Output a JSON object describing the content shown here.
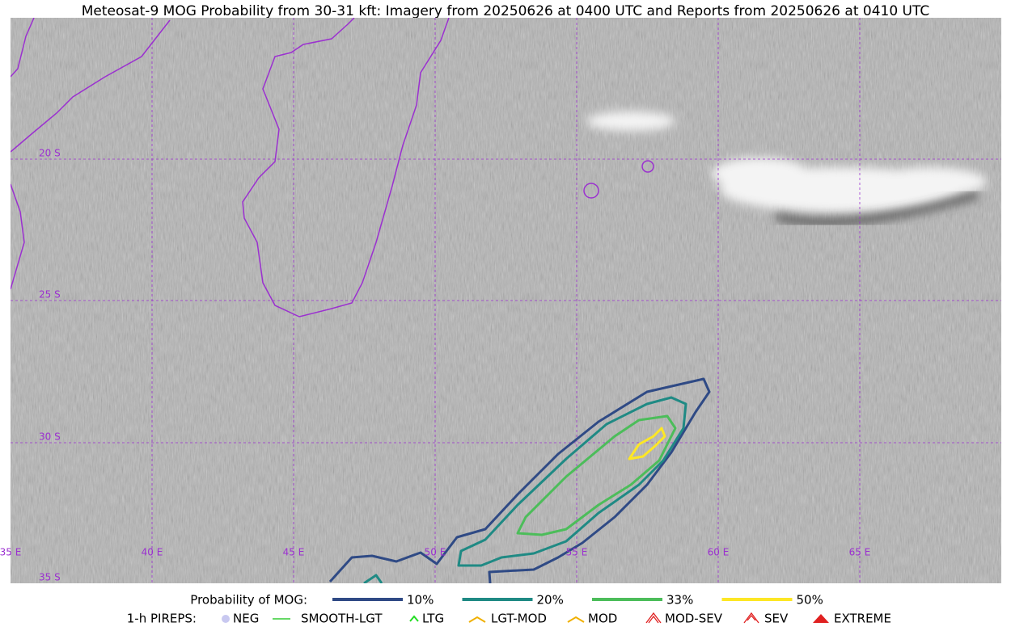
{
  "title": "Meteosat-9 MOG Probability from 30-31 kft: Imagery from 20250626 at 0400 UTC and Reports from 20250626 at 0410 UTC",
  "lat_labels": [
    "20 S",
    "25 S",
    "30 S",
    "35 S"
  ],
  "lon_labels": [
    "35 E",
    "40 E",
    "45 E",
    "50 E",
    "55 E",
    "60 E",
    "65 E"
  ],
  "probability_legend": {
    "label": "Probability of MOG:",
    "items": [
      {
        "label": "10%",
        "color": "#2f4a85"
      },
      {
        "label": "20%",
        "color": "#1f8a84"
      },
      {
        "label": "33%",
        "color": "#4cbd5a"
      },
      {
        "label": "50%",
        "color": "#fde725"
      }
    ]
  },
  "pirep_legend": {
    "label": "1-h PIREPS:",
    "items": [
      {
        "label": "NEG",
        "color": "#c8c8f0"
      },
      {
        "label": "SMOOTH-LGT",
        "color": "#33cc33"
      },
      {
        "label": "LTG",
        "color": "#22dd22"
      },
      {
        "label": "LGT-MOD",
        "color": "#f0b000"
      },
      {
        "label": "MOD",
        "color": "#f0b000"
      },
      {
        "label": "MOD-SEV",
        "color": "#e02020"
      },
      {
        "label": "SEV",
        "color": "#e02020"
      },
      {
        "label": "EXTREME",
        "color": "#e02020"
      }
    ]
  }
}
